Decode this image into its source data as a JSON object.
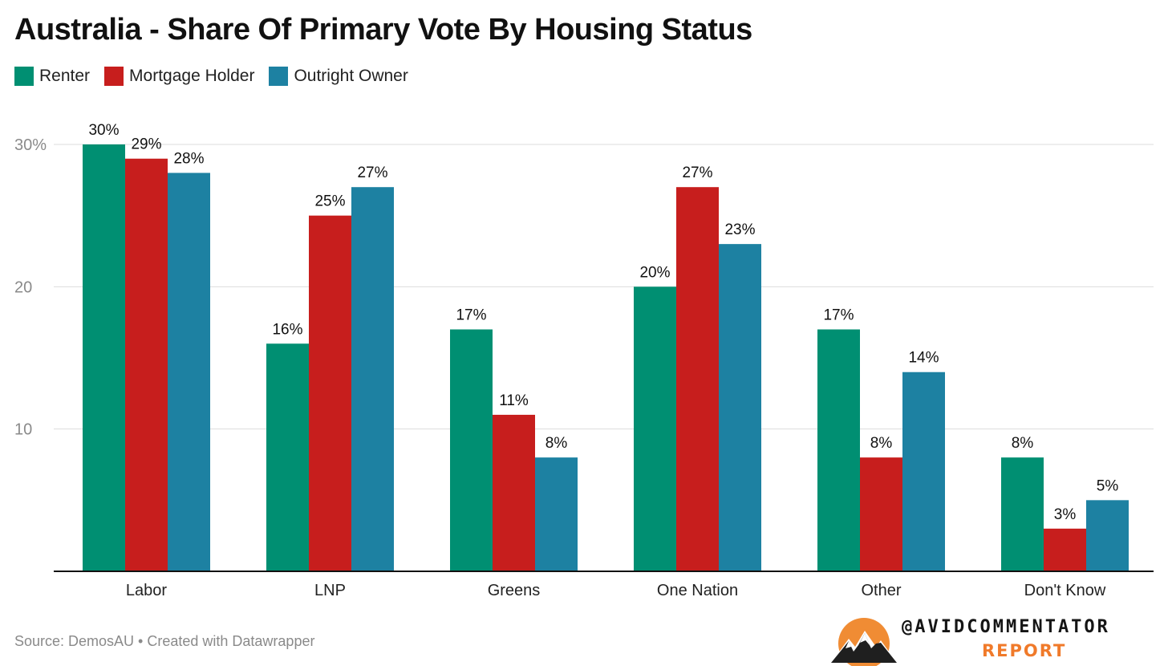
{
  "title": "Australia - Share Of Primary Vote By Housing Status",
  "legend": [
    {
      "label": "Renter",
      "color": "#008F72"
    },
    {
      "label": "Mortgage Holder",
      "color": "#C71E1D"
    },
    {
      "label": "Outright Owner",
      "color": "#1D81A2"
    }
  ],
  "footer": {
    "source": "Source: DemosAU • Created with Datawrapper"
  },
  "brand": {
    "handle": "@AVIDCOMMENTATOR",
    "sub": "REPORT",
    "logo_icon": "mountain-sun-logo-icon"
  },
  "chart_data": {
    "type": "bar",
    "title": "Australia - Share Of Primary Vote By Housing Status",
    "categories": [
      "Labor",
      "LNP",
      "Greens",
      "One Nation",
      "Other",
      "Don't Know"
    ],
    "series": [
      {
        "name": "Renter",
        "color": "#008F72",
        "values": [
          30,
          16,
          17,
          20,
          17,
          8
        ]
      },
      {
        "name": "Mortgage Holder",
        "color": "#C71E1D",
        "values": [
          29,
          25,
          11,
          27,
          8,
          3
        ]
      },
      {
        "name": "Outright Owner",
        "color": "#1D81A2",
        "values": [
          28,
          27,
          8,
          23,
          14,
          5
        ]
      }
    ],
    "value_suffix": "%",
    "yticks": [
      "10",
      "20",
      "30%"
    ],
    "ytick_values": [
      10,
      20,
      30
    ],
    "ylim": [
      0,
      30
    ],
    "grid": true,
    "legend_position": "top-left",
    "xlabel": "",
    "ylabel": ""
  }
}
